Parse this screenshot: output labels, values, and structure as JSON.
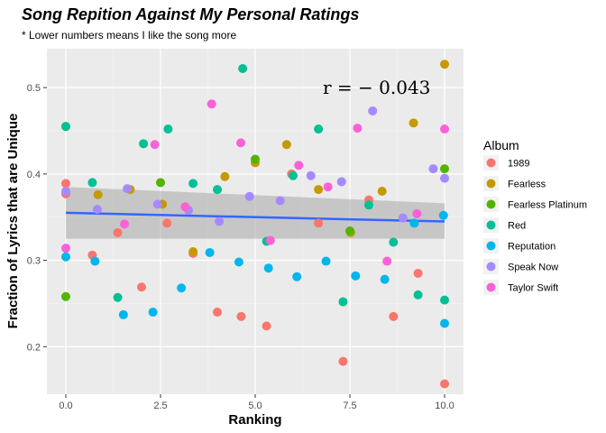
{
  "chart_data": {
    "type": "scatter",
    "title": "Song Repition Against My Personal Ratings",
    "subtitle": "* Lower numbers means I like the song more",
    "xlabel": "Ranking",
    "ylabel": "Fraction of Lyrics that are Unique",
    "xlim": [
      -0.5,
      10.5
    ],
    "ylim": [
      0.145,
      0.545
    ],
    "xticks": [
      0,
      2.5,
      5,
      7.5,
      10
    ],
    "xtick_labels": [
      "0.0",
      "2.5",
      "5.0",
      "7.5",
      "10.0"
    ],
    "yticks": [
      0.2,
      0.3,
      0.4,
      0.5
    ],
    "ytick_labels": [
      "0.2",
      "0.3",
      "0.4",
      "0.5"
    ],
    "grid": true,
    "legend": {
      "title": "Album",
      "position": "right"
    },
    "annotation": "r = − 0.043",
    "trend": {
      "method": "lm",
      "x": [
        0,
        10
      ],
      "y": [
        0.355,
        0.345
      ],
      "ci_low": [
        0.325,
        0.325
      ],
      "ci_high": [
        0.385,
        0.366
      ]
    },
    "series": [
      {
        "name": "1989",
        "color": "#F8766D",
        "points": [
          [
            0,
            0.389
          ],
          [
            0,
            0.377
          ],
          [
            0.7,
            0.306
          ],
          [
            1.37,
            0.332
          ],
          [
            2.0,
            0.269
          ],
          [
            2.67,
            0.343
          ],
          [
            3.36,
            0.308
          ],
          [
            4.0,
            0.24
          ],
          [
            4.63,
            0.235
          ],
          [
            5.3,
            0.224
          ],
          [
            5.96,
            0.4
          ],
          [
            6.67,
            0.343
          ],
          [
            7.32,
            0.183
          ],
          [
            8.0,
            0.37
          ],
          [
            8.65,
            0.235
          ],
          [
            9.3,
            0.285
          ],
          [
            10,
            0.157
          ]
        ]
      },
      {
        "name": "Fearless",
        "color": "#C49A00",
        "points": [
          [
            0,
            0.455
          ],
          [
            0.85,
            0.376
          ],
          [
            1.7,
            0.382
          ],
          [
            2.55,
            0.365
          ],
          [
            3.36,
            0.31
          ],
          [
            4.2,
            0.397
          ],
          [
            5.0,
            0.413
          ],
          [
            5.83,
            0.434
          ],
          [
            6.67,
            0.382
          ],
          [
            7.52,
            0.332
          ],
          [
            8.35,
            0.38
          ],
          [
            9.18,
            0.459
          ],
          [
            10,
            0.527
          ]
        ]
      },
      {
        "name": "Fearless Platinum",
        "color": "#53B400",
        "points": [
          [
            0,
            0.258
          ],
          [
            2.5,
            0.39
          ],
          [
            5.0,
            0.417
          ],
          [
            7.5,
            0.334
          ],
          [
            10,
            0.406
          ]
        ]
      },
      {
        "name": "Red",
        "color": "#00C094",
        "points": [
          [
            0,
            0.455
          ],
          [
            0.7,
            0.39
          ],
          [
            1.37,
            0.257
          ],
          [
            2.05,
            0.435
          ],
          [
            2.7,
            0.452
          ],
          [
            3.36,
            0.389
          ],
          [
            4.0,
            0.382
          ],
          [
            4.67,
            0.522
          ],
          [
            5.3,
            0.322
          ],
          [
            6.0,
            0.398
          ],
          [
            6.67,
            0.452
          ],
          [
            7.32,
            0.252
          ],
          [
            8.0,
            0.364
          ],
          [
            8.65,
            0.321
          ],
          [
            9.3,
            0.26
          ],
          [
            10,
            0.254
          ]
        ]
      },
      {
        "name": "Reputation",
        "color": "#00B6EB",
        "points": [
          [
            0,
            0.304
          ],
          [
            0.77,
            0.299
          ],
          [
            1.52,
            0.237
          ],
          [
            2.3,
            0.24
          ],
          [
            3.05,
            0.268
          ],
          [
            3.8,
            0.309
          ],
          [
            4.57,
            0.298
          ],
          [
            5.35,
            0.291
          ],
          [
            6.1,
            0.281
          ],
          [
            6.87,
            0.299
          ],
          [
            7.65,
            0.282
          ],
          [
            8.42,
            0.278
          ],
          [
            9.2,
            0.343
          ],
          [
            9.97,
            0.352
          ],
          [
            10,
            0.227
          ]
        ]
      },
      {
        "name": "Speak Now",
        "color": "#A58AFF",
        "points": [
          [
            0,
            0.38
          ],
          [
            0.83,
            0.359
          ],
          [
            1.62,
            0.383
          ],
          [
            2.42,
            0.365
          ],
          [
            3.24,
            0.358
          ],
          [
            4.05,
            0.345
          ],
          [
            4.85,
            0.374
          ],
          [
            5.66,
            0.369
          ],
          [
            6.47,
            0.398
          ],
          [
            7.28,
            0.391
          ],
          [
            8.1,
            0.473
          ],
          [
            8.9,
            0.349
          ],
          [
            9.7,
            0.406
          ],
          [
            10,
            0.395
          ]
        ]
      },
      {
        "name": "Taylor Swift",
        "color": "#FB61D7",
        "points": [
          [
            0,
            0.314
          ],
          [
            1.55,
            0.342
          ],
          [
            2.35,
            0.434
          ],
          [
            3.15,
            0.362
          ],
          [
            3.85,
            0.481
          ],
          [
            4.62,
            0.436
          ],
          [
            5.4,
            0.323
          ],
          [
            6.15,
            0.41
          ],
          [
            6.92,
            0.385
          ],
          [
            7.7,
            0.453
          ],
          [
            8.48,
            0.299
          ],
          [
            9.27,
            0.354
          ],
          [
            10,
            0.452
          ]
        ]
      }
    ]
  }
}
